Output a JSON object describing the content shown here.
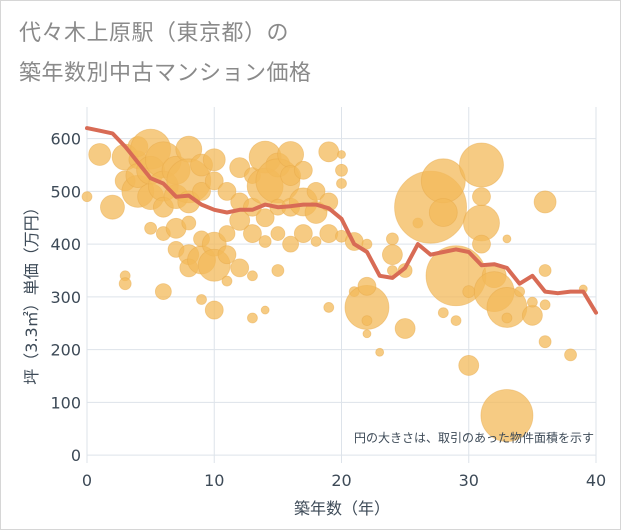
{
  "title_line1": "代々木上原駅（東京都）の",
  "title_line2": "築年数別中古マンション価格",
  "note": "円の大きさは、取引のあった物件面積を示す",
  "colors": {
    "bubble": "#f3b95a",
    "line": "#d86b55",
    "grid": "#dde3ea",
    "text": "#3d4a57"
  },
  "chart_data": {
    "type": "scatter",
    "xlabel": "築年数（年）",
    "ylabel": "坪（3.3㎡）単価（万円）",
    "xlim": [
      0,
      40
    ],
    "ylim": [
      -15,
      660
    ],
    "xticks": [
      0,
      10,
      20,
      30,
      40
    ],
    "yticks": [
      0,
      100,
      200,
      300,
      400,
      500,
      600
    ],
    "bubbles": [
      {
        "x": 0,
        "y": 490,
        "s": 5
      },
      {
        "x": 1,
        "y": 570,
        "s": 11
      },
      {
        "x": 2,
        "y": 470,
        "s": 12
      },
      {
        "x": 3,
        "y": 565,
        "s": 13
      },
      {
        "x": 3,
        "y": 520,
        "s": 10
      },
      {
        "x": 3,
        "y": 340,
        "s": 5
      },
      {
        "x": 3,
        "y": 325,
        "s": 6
      },
      {
        "x": 4,
        "y": 560,
        "s": 9
      },
      {
        "x": 4,
        "y": 500,
        "s": 16
      },
      {
        "x": 4,
        "y": 530,
        "s": 12
      },
      {
        "x": 4,
        "y": 585,
        "s": 10
      },
      {
        "x": 5,
        "y": 580,
        "s": 20
      },
      {
        "x": 5,
        "y": 540,
        "s": 14
      },
      {
        "x": 5,
        "y": 490,
        "s": 13
      },
      {
        "x": 5,
        "y": 430,
        "s": 6
      },
      {
        "x": 6,
        "y": 560,
        "s": 18
      },
      {
        "x": 6,
        "y": 510,
        "s": 15
      },
      {
        "x": 6,
        "y": 470,
        "s": 10
      },
      {
        "x": 6,
        "y": 420,
        "s": 7
      },
      {
        "x": 6,
        "y": 310,
        "s": 8
      },
      {
        "x": 7,
        "y": 540,
        "s": 14
      },
      {
        "x": 7,
        "y": 490,
        "s": 12
      },
      {
        "x": 7,
        "y": 430,
        "s": 10
      },
      {
        "x": 7,
        "y": 390,
        "s": 8
      },
      {
        "x": 8,
        "y": 580,
        "s": 13
      },
      {
        "x": 8,
        "y": 520,
        "s": 22
      },
      {
        "x": 8,
        "y": 480,
        "s": 11
      },
      {
        "x": 8,
        "y": 440,
        "s": 7
      },
      {
        "x": 8,
        "y": 380,
        "s": 10
      },
      {
        "x": 8,
        "y": 355,
        "s": 9
      },
      {
        "x": 9,
        "y": 550,
        "s": 11
      },
      {
        "x": 9,
        "y": 500,
        "s": 9
      },
      {
        "x": 9,
        "y": 410,
        "s": 8
      },
      {
        "x": 9,
        "y": 370,
        "s": 14
      },
      {
        "x": 9,
        "y": 295,
        "s": 5
      },
      {
        "x": 10,
        "y": 560,
        "s": 11
      },
      {
        "x": 10,
        "y": 520,
        "s": 9
      },
      {
        "x": 10,
        "y": 400,
        "s": 12
      },
      {
        "x": 10,
        "y": 360,
        "s": 16
      },
      {
        "x": 10,
        "y": 275,
        "s": 9
      },
      {
        "x": 11,
        "y": 500,
        "s": 9
      },
      {
        "x": 11,
        "y": 420,
        "s": 8
      },
      {
        "x": 11,
        "y": 380,
        "s": 9
      },
      {
        "x": 11,
        "y": 330,
        "s": 5
      },
      {
        "x": 12,
        "y": 545,
        "s": 10
      },
      {
        "x": 12,
        "y": 480,
        "s": 9
      },
      {
        "x": 12,
        "y": 445,
        "s": 10
      },
      {
        "x": 12,
        "y": 355,
        "s": 9
      },
      {
        "x": 13,
        "y": 530,
        "s": 8
      },
      {
        "x": 13,
        "y": 470,
        "s": 9
      },
      {
        "x": 13,
        "y": 420,
        "s": 9
      },
      {
        "x": 13,
        "y": 340,
        "s": 5
      },
      {
        "x": 13,
        "y": 260,
        "s": 5
      },
      {
        "x": 14,
        "y": 565,
        "s": 16
      },
      {
        "x": 14,
        "y": 510,
        "s": 18
      },
      {
        "x": 14,
        "y": 450,
        "s": 9
      },
      {
        "x": 14,
        "y": 405,
        "s": 6
      },
      {
        "x": 14,
        "y": 275,
        "s": 4
      },
      {
        "x": 15,
        "y": 550,
        "s": 12
      },
      {
        "x": 15,
        "y": 520,
        "s": 22
      },
      {
        "x": 15,
        "y": 470,
        "s": 8
      },
      {
        "x": 15,
        "y": 420,
        "s": 7
      },
      {
        "x": 15,
        "y": 350,
        "s": 6
      },
      {
        "x": 16,
        "y": 570,
        "s": 13
      },
      {
        "x": 16,
        "y": 530,
        "s": 10
      },
      {
        "x": 16,
        "y": 470,
        "s": 9
      },
      {
        "x": 16,
        "y": 400,
        "s": 8
      },
      {
        "x": 17,
        "y": 540,
        "s": 9
      },
      {
        "x": 17,
        "y": 480,
        "s": 14
      },
      {
        "x": 17,
        "y": 420,
        "s": 9
      },
      {
        "x": 18,
        "y": 500,
        "s": 9
      },
      {
        "x": 18,
        "y": 460,
        "s": 11
      },
      {
        "x": 18,
        "y": 405,
        "s": 5
      },
      {
        "x": 19,
        "y": 575,
        "s": 10
      },
      {
        "x": 19,
        "y": 480,
        "s": 9
      },
      {
        "x": 19,
        "y": 420,
        "s": 9
      },
      {
        "x": 19,
        "y": 280,
        "s": 5
      },
      {
        "x": 20,
        "y": 570,
        "s": 4
      },
      {
        "x": 20,
        "y": 540,
        "s": 6
      },
      {
        "x": 20,
        "y": 515,
        "s": 5
      },
      {
        "x": 20,
        "y": 415,
        "s": 6
      },
      {
        "x": 21,
        "y": 405,
        "s": 9
      },
      {
        "x": 21,
        "y": 310,
        "s": 5
      },
      {
        "x": 22,
        "y": 280,
        "s": 22
      },
      {
        "x": 22,
        "y": 320,
        "s": 9
      },
      {
        "x": 22,
        "y": 400,
        "s": 5
      },
      {
        "x": 22,
        "y": 255,
        "s": 5
      },
      {
        "x": 22,
        "y": 230,
        "s": 4
      },
      {
        "x": 23,
        "y": 195,
        "s": 4
      },
      {
        "x": 24,
        "y": 410,
        "s": 6
      },
      {
        "x": 24,
        "y": 380,
        "s": 10
      },
      {
        "x": 24,
        "y": 350,
        "s": 5
      },
      {
        "x": 25,
        "y": 240,
        "s": 10
      },
      {
        "x": 25,
        "y": 350,
        "s": 7
      },
      {
        "x": 26,
        "y": 440,
        "s": 5
      },
      {
        "x": 27,
        "y": 470,
        "s": 36
      },
      {
        "x": 28,
        "y": 520,
        "s": 22
      },
      {
        "x": 28,
        "y": 460,
        "s": 14
      },
      {
        "x": 28,
        "y": 270,
        "s": 5
      },
      {
        "x": 29,
        "y": 340,
        "s": 30
      },
      {
        "x": 29,
        "y": 255,
        "s": 5
      },
      {
        "x": 30,
        "y": 170,
        "s": 10
      },
      {
        "x": 30,
        "y": 310,
        "s": 6
      },
      {
        "x": 31,
        "y": 550,
        "s": 22
      },
      {
        "x": 31,
        "y": 440,
        "s": 18
      },
      {
        "x": 31,
        "y": 490,
        "s": 9
      },
      {
        "x": 31,
        "y": 400,
        "s": 9
      },
      {
        "x": 32,
        "y": 340,
        "s": 12
      },
      {
        "x": 32,
        "y": 310,
        "s": 20
      },
      {
        "x": 33,
        "y": 280,
        "s": 20
      },
      {
        "x": 33,
        "y": 75,
        "s": 26
      },
      {
        "x": 33,
        "y": 410,
        "s": 4
      },
      {
        "x": 33,
        "y": 260,
        "s": 5
      },
      {
        "x": 34,
        "y": 310,
        "s": 5
      },
      {
        "x": 35,
        "y": 265,
        "s": 10
      },
      {
        "x": 35,
        "y": 290,
        "s": 5
      },
      {
        "x": 36,
        "y": 480,
        "s": 11
      },
      {
        "x": 36,
        "y": 350,
        "s": 6
      },
      {
        "x": 36,
        "y": 285,
        "s": 5
      },
      {
        "x": 36,
        "y": 215,
        "s": 6
      },
      {
        "x": 38,
        "y": 190,
        "s": 6
      },
      {
        "x": 39,
        "y": 315,
        "s": 4
      }
    ],
    "line": {
      "x": [
        0,
        1,
        2,
        3,
        4,
        5,
        6,
        7,
        8,
        9,
        10,
        11,
        12,
        13,
        14,
        15,
        16,
        17,
        18,
        19,
        20,
        21,
        22,
        23,
        24,
        25,
        26,
        27,
        28,
        29,
        30,
        31,
        32,
        33,
        34,
        35,
        36,
        37,
        38,
        39,
        40
      ],
      "y": [
        620,
        615,
        610,
        585,
        555,
        525,
        515,
        490,
        492,
        475,
        465,
        460,
        465,
        465,
        475,
        470,
        472,
        475,
        475,
        468,
        448,
        400,
        385,
        340,
        336,
        355,
        400,
        380,
        385,
        390,
        385,
        360,
        362,
        355,
        325,
        340,
        310,
        307,
        310,
        310,
        270
      ]
    }
  }
}
